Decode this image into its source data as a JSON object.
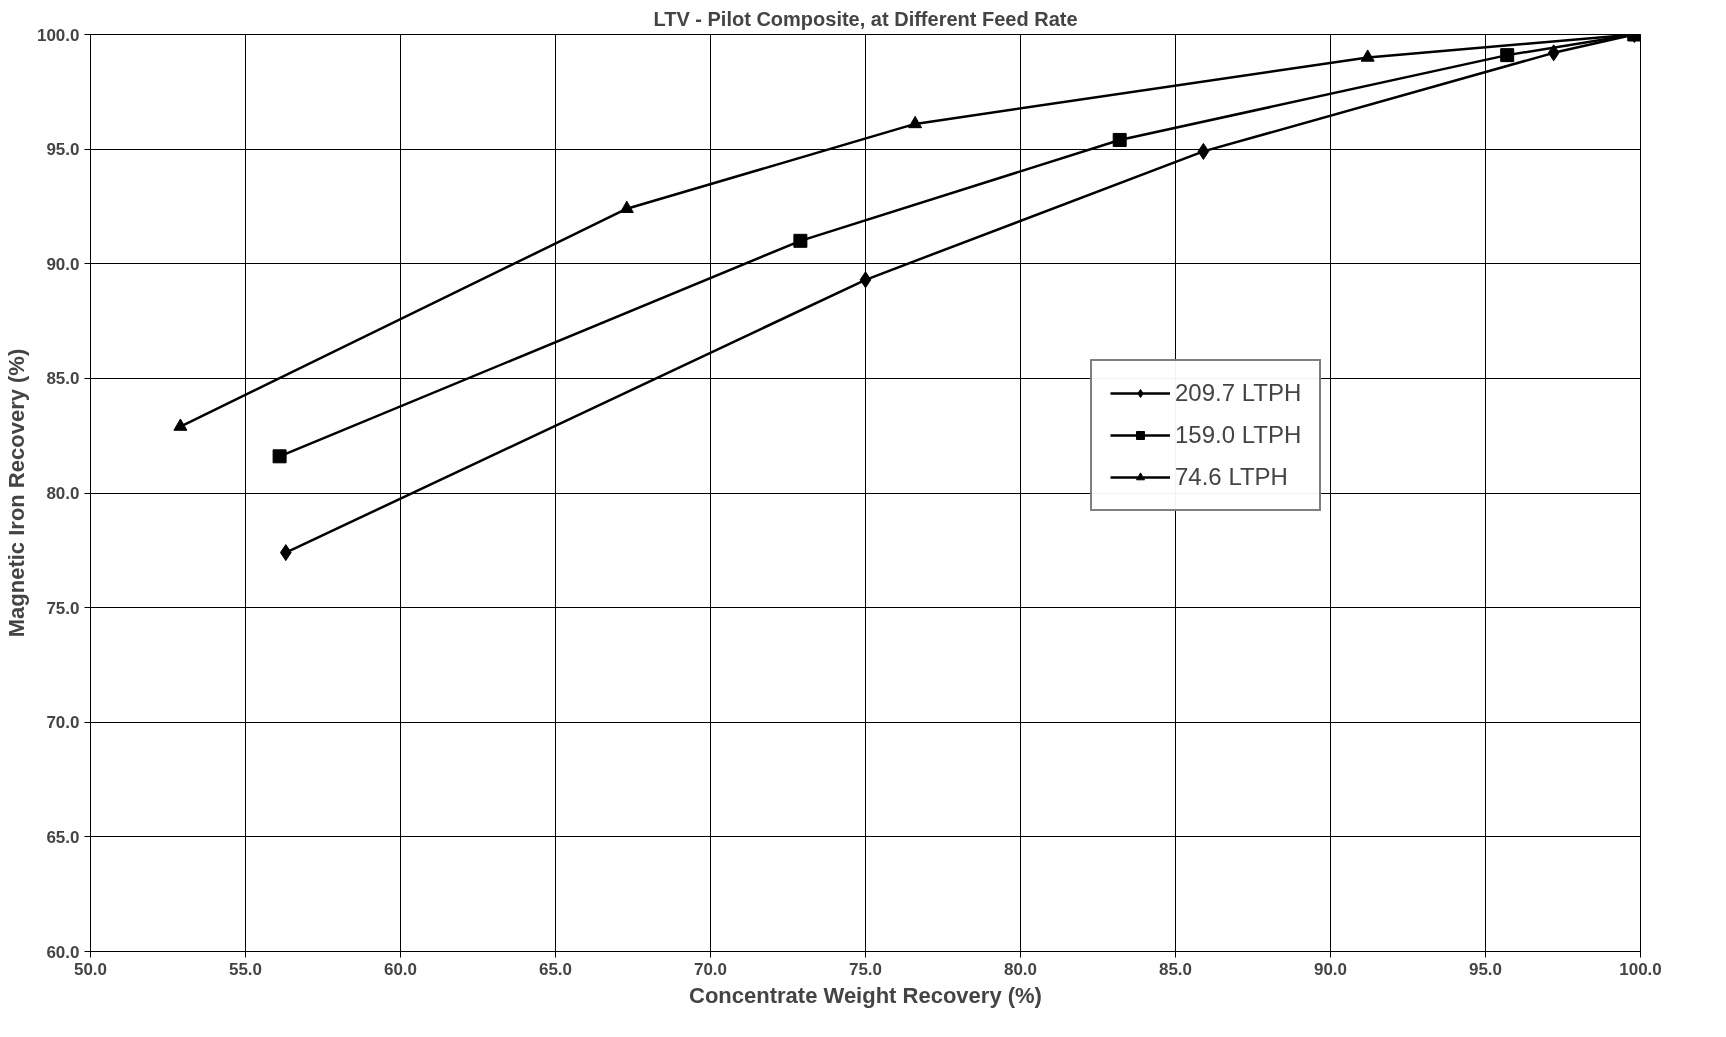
{
  "chart_data": {
    "type": "line",
    "title": "LTV - Pilot Composite, at Different Feed Rate",
    "xlabel": "Concentrate Weight Recovery (%)",
    "ylabel": "Magnetic Iron Recovery (%)",
    "xlim": [
      50,
      100
    ],
    "ylim": [
      60,
      100
    ],
    "xticks": [
      {
        "value": 50,
        "label": "50.0"
      },
      {
        "value": 55,
        "label": "55.0"
      },
      {
        "value": 60,
        "label": "60.0"
      },
      {
        "value": 65,
        "label": "65.0"
      },
      {
        "value": 70,
        "label": "70.0"
      },
      {
        "value": 75,
        "label": "75.0"
      },
      {
        "value": 80,
        "label": "80.0"
      },
      {
        "value": 85,
        "label": "85.0"
      },
      {
        "value": 90,
        "label": "90.0"
      },
      {
        "value": 95,
        "label": "95.0"
      },
      {
        "value": 100,
        "label": "100.0"
      }
    ],
    "yticks": [
      {
        "value": 60,
        "label": "60.0"
      },
      {
        "value": 65,
        "label": "65.0"
      },
      {
        "value": 70,
        "label": "70.0"
      },
      {
        "value": 75,
        "label": "75.0"
      },
      {
        "value": 80,
        "label": "80.0"
      },
      {
        "value": 85,
        "label": "85.0"
      },
      {
        "value": 90,
        "label": "90.0"
      },
      {
        "value": 95,
        "label": "95.0"
      },
      {
        "value": 100,
        "label": "100.0"
      }
    ],
    "grid": true,
    "legend": "right",
    "line_style": "solid",
    "series": [
      {
        "name": "209.7 LTPH",
        "color": "#000000",
        "marker": "diamond",
        "x": [
          56.3,
          75.0,
          85.9,
          97.2,
          99.8
        ],
        "values": [
          77.4,
          89.3,
          94.9,
          99.2,
          100.0
        ]
      },
      {
        "name": "159.0 LTPH",
        "color": "#000000",
        "marker": "square",
        "x": [
          56.1,
          72.9,
          83.2,
          95.7,
          99.8
        ],
        "values": [
          81.6,
          91.0,
          95.4,
          99.1,
          100.0
        ]
      },
      {
        "name": "74.6 LTPH",
        "color": "#000000",
        "marker": "triangle",
        "x": [
          52.9,
          67.3,
          76.6,
          91.2,
          99.8
        ],
        "values": [
          82.9,
          92.4,
          96.1,
          99.0,
          100.0
        ]
      }
    ]
  }
}
